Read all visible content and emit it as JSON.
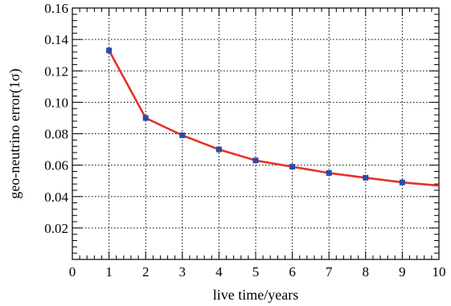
{
  "chart_data": {
    "type": "line",
    "title": "",
    "xlabel": "live time/years",
    "ylabel": "geo-neutrino error(1σ)",
    "xlim": [
      0,
      10
    ],
    "ylim": [
      0,
      0.16
    ],
    "grid": true,
    "x_ticks": [
      "0",
      "1",
      "2",
      "3",
      "4",
      "5",
      "6",
      "7",
      "8",
      "9",
      "10"
    ],
    "y_ticks": [
      "0.02",
      "0.04",
      "0.06",
      "0.08",
      "0.10",
      "0.12",
      "0.14",
      "0.16"
    ],
    "y_tick_values": [
      0.02,
      0.04,
      0.06,
      0.08,
      0.1,
      0.12,
      0.14,
      0.16
    ],
    "series": [
      {
        "x": [
          1,
          2,
          3,
          4,
          5,
          6,
          7,
          8,
          9
        ],
        "values": [
          0.133,
          0.09,
          0.079,
          0.07,
          0.063,
          0.059,
          0.055,
          0.052,
          0.049
        ],
        "line_color": "#e8302a",
        "marker_color": "#2b4aa8"
      }
    ],
    "line_end": {
      "x": 10,
      "value": 0.047
    }
  }
}
